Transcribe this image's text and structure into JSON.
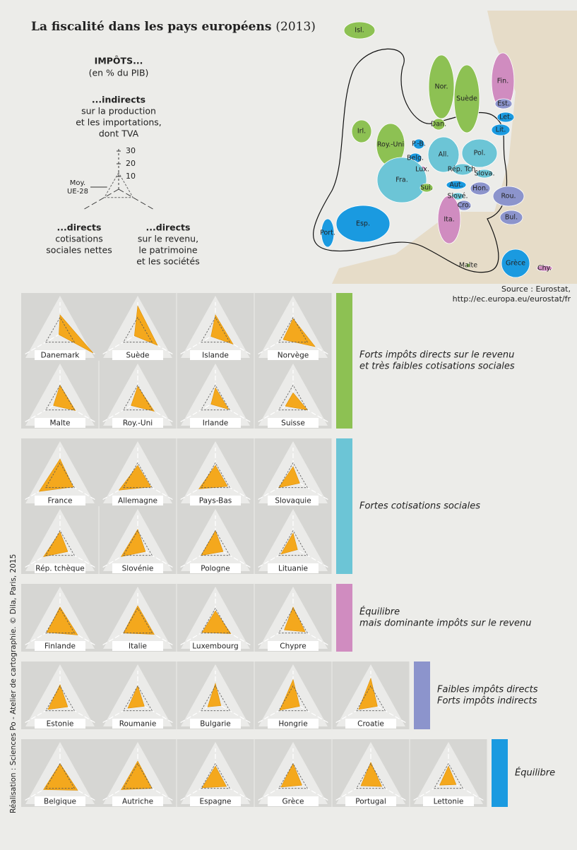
{
  "title": "La fiscalité dans les pays européens",
  "title_year": "(2013)",
  "legend": {
    "heading": "IMPÔTS...",
    "subheading": "(en % du PIB)",
    "top": [
      "...indirects",
      "sur la production",
      "et les importations,",
      "dont TVA"
    ],
    "left": [
      "...directs",
      "cotisations",
      "sociales nettes"
    ],
    "right": [
      "...directs",
      "sur le revenu,",
      "le patrimoine",
      "et les sociétés"
    ],
    "ticks": [
      10,
      20,
      30
    ],
    "average_label": [
      "Moy.",
      "UE-28"
    ],
    "average": [
      13,
      13,
      13
    ]
  },
  "map": {
    "labels": [
      "Isl.",
      "Nor.",
      "Suède",
      "Fin.",
      "Est.",
      "Let.",
      "Lit.",
      "Dan.",
      "Irl.",
      "Roy.-Uni",
      "P.-B.",
      "Belg.",
      "Lux.",
      "All.",
      "Pol.",
      "Rép. Tch.",
      "Slova.",
      "Fra.",
      "Aut.",
      "Hon.",
      "Rou.",
      "Sui.",
      "Slové.",
      "Cro.",
      "Bul.",
      "Port.",
      "Esp.",
      "Ita.",
      "Malte",
      "Grèce",
      "Chy."
    ],
    "source": [
      "Source : Eurostat,",
      "http://ec.europa.eu/eurostat/fr"
    ]
  },
  "groups": [
    {
      "label": [
        "Forts impôts directs sur le revenu",
        "et très faibles cotisations sociales"
      ],
      "color": "#8dc153",
      "countries": [
        {
          "name": "Danemark",
          "values": [
            15,
            1,
            30
          ]
        },
        {
          "name": "Suède",
          "values": [
            22,
            3,
            18
          ]
        },
        {
          "name": "Islande",
          "values": [
            15,
            4,
            16
          ]
        },
        {
          "name": "Norvège",
          "values": [
            12,
            9,
            20
          ]
        },
        {
          "name": "Malte",
          "values": [
            13,
            6,
            14
          ]
        },
        {
          "name": "Roy.-Uni",
          "values": [
            12,
            6,
            15
          ]
        },
        {
          "name": "Irlande",
          "values": [
            11,
            4,
            12
          ]
        },
        {
          "name": "Suisse",
          "values": [
            7,
            7,
            13
          ]
        }
      ]
    },
    {
      "label": [
        "Fortes cotisations sociales"
      ],
      "color": "#6cc5d6",
      "countries": [
        {
          "name": "France",
          "values": [
            16,
            19,
            12
          ]
        },
        {
          "name": "Allemagne",
          "values": [
            11,
            17,
            12
          ]
        },
        {
          "name": "Pays-Bas",
          "values": [
            11,
            15,
            11
          ]
        },
        {
          "name": "Slovaquie",
          "values": [
            10,
            13,
            6
          ]
        },
        {
          "name": "Rép. tchèque",
          "values": [
            12,
            15,
            7
          ]
        },
        {
          "name": "Slovénie",
          "values": [
            14,
            15,
            7
          ]
        },
        {
          "name": "Pologne",
          "values": [
            13,
            13,
            7
          ]
        },
        {
          "name": "Lituanie",
          "values": [
            11,
            11,
            4
          ]
        }
      ]
    },
    {
      "label": [
        "Équilibre",
        "mais dominante impôts sur le revenu"
      ],
      "color": "#d08cc0",
      "countries": [
        {
          "name": "Finlande",
          "values": [
            14,
            12,
            16
          ]
        },
        {
          "name": "Italie",
          "values": [
            15,
            13,
            15
          ]
        },
        {
          "name": "Luxembourg",
          "values": [
            11,
            12,
            14
          ]
        },
        {
          "name": "Chypre",
          "values": [
            14,
            8,
            11
          ]
        }
      ]
    },
    {
      "label": [
        "Faibles impôts directs",
        "Forts impôts indirects"
      ],
      "color": "#8c94cc",
      "countries": [
        {
          "name": "Estonie",
          "values": [
            14,
            11,
            7
          ]
        },
        {
          "name": "Roumanie",
          "values": [
            13,
            9,
            6
          ]
        },
        {
          "name": "Bulgarie",
          "values": [
            15,
            7,
            5
          ]
        },
        {
          "name": "Hongrie",
          "values": [
            18,
            12,
            6
          ]
        },
        {
          "name": "Croatie",
          "values": [
            19,
            11,
            6
          ]
        }
      ]
    },
    {
      "label": [
        "Équilibre"
      ],
      "color": "#1a9ae0",
      "countries": [
        {
          "name": "Belgique",
          "values": [
            13,
            15,
            16
          ]
        },
        {
          "name": "Autriche",
          "values": [
            15,
            15,
            13
          ]
        },
        {
          "name": "Espagne",
          "values": [
            11,
            12,
            10
          ]
        },
        {
          "name": "Grèce",
          "values": [
            13,
            11,
            8
          ]
        },
        {
          "name": "Portugal",
          "values": [
            14,
            9,
            10
          ]
        },
        {
          "name": "Lettonie",
          "values": [
            11,
            8,
            7
          ]
        }
      ]
    }
  ],
  "credit": "Réalisation : Sciences Po - Atelier de cartographie. © Dila, Paris, 2015"
}
